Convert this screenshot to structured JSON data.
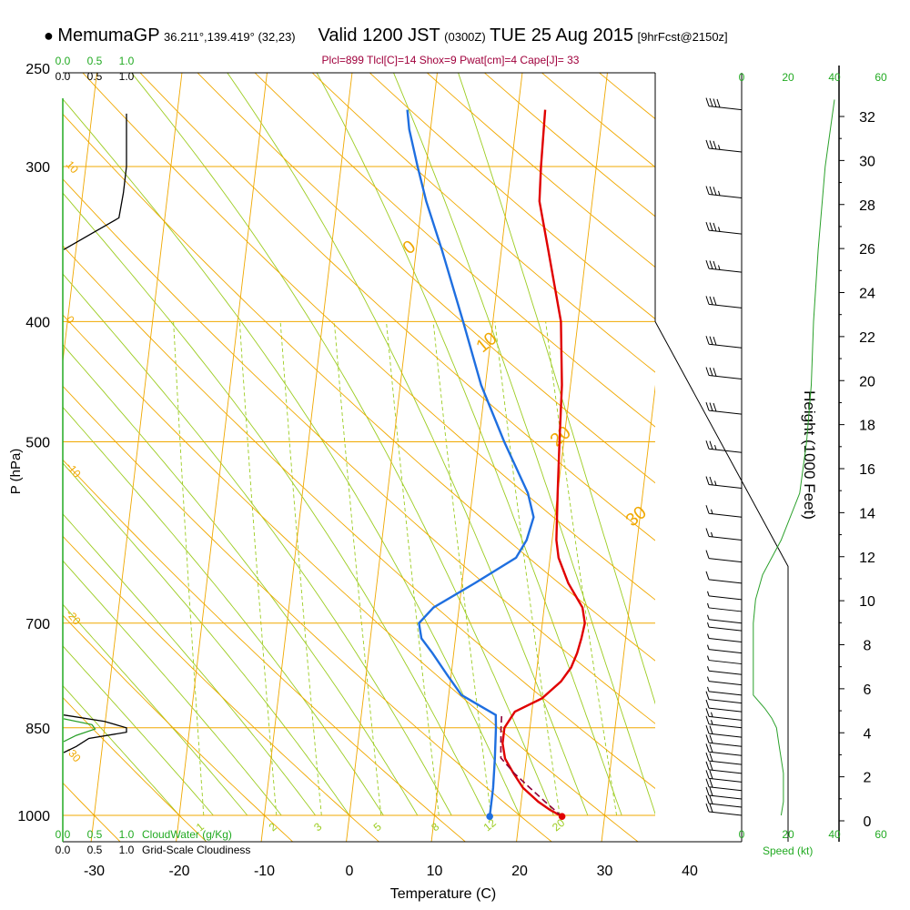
{
  "header": {
    "model": "MemumaGP",
    "coords": "36.211°,139.419° (32,23)",
    "valid_label": "Valid 1200 JST",
    "utc": "(0300Z)",
    "date": "TUE 25 Aug 2015",
    "forecast": "[9hrFcst@2150z]",
    "stats": "Plcl=899 Tlcl[C]=14 Shox=9 Pwat[cm]=4 Cape[J]= 33"
  },
  "colors": {
    "temperature": "#e00000",
    "dewpoint": "#1f6fe0",
    "parcel": "#8b0038",
    "isotherm": "#f0a800",
    "dry_adiabat": "#f0a800",
    "moist_adiabat": "#9ccc20",
    "mixing_ratio": "#9ccc20",
    "cloud": "#000000",
    "wind_speed": "#2aa02a",
    "scale_green": "#22aa22"
  },
  "chart_data": {
    "type": "line",
    "xlabel": "Temperature (C)",
    "ylabel": "P (hPa)",
    "y2label": "Height (1000 Feet)",
    "xticks": [
      "-30",
      "-20",
      "-10",
      "0",
      "10",
      "20",
      "30",
      "40"
    ],
    "xtick_values": [
      -30,
      -20,
      -10,
      0,
      10,
      20,
      30,
      40
    ],
    "yticks": [
      "1000",
      "850",
      "700",
      "500",
      "400",
      "300",
      "250"
    ],
    "ytick_values": [
      1000,
      850,
      700,
      500,
      400,
      300,
      250
    ],
    "height_ticks": [
      "0",
      "2",
      "4",
      "6",
      "8",
      "10",
      "12",
      "14",
      "16",
      "18",
      "20",
      "22",
      "24",
      "26",
      "28",
      "30",
      "32"
    ],
    "height_values_kft": [
      0,
      2,
      4,
      6,
      8,
      10,
      12,
      14,
      16,
      18,
      20,
      22,
      24,
      26,
      28,
      30,
      32
    ],
    "xlim": [
      -33.5,
      46
    ],
    "ylim": [
      1000,
      250
    ],
    "scale_labels": [
      "0.0",
      "0.5",
      "1.0"
    ],
    "bottom_green_scale_label": "CloudWater (g/Kg)",
    "bottom_black_scale_label": "Grid-Scale Cloudiness",
    "speed_ticks": [
      "0",
      "20",
      "40",
      "60"
    ],
    "speed_values": [
      0,
      20,
      40,
      60
    ],
    "speed_label": "Speed (kt)",
    "isotherm_labels": [
      {
        "text": "0",
        "t": 0,
        "p": 350
      },
      {
        "text": "10",
        "t": 10,
        "p": 420
      },
      {
        "text": "20",
        "t": 20,
        "p": 500
      },
      {
        "text": "30",
        "t": 30,
        "p": 580
      }
    ],
    "dry_adiabat_labels": [
      {
        "text": "10",
        "p": 300
      },
      {
        "text": "0",
        "p": 400
      },
      {
        "text": "-10",
        "p": 525
      },
      {
        "text": "-20",
        "p": 690
      },
      {
        "text": "-30",
        "p": 890
      }
    ],
    "mixing_ratio_labels": [
      {
        "text": "1",
        "w": 1
      },
      {
        "text": "2",
        "w": 2
      },
      {
        "text": "3",
        "w": 3
      },
      {
        "text": "5",
        "w": 5
      },
      {
        "text": "8",
        "w": 8
      },
      {
        "text": "12",
        "w": 12
      },
      {
        "text": "20",
        "w": 20
      }
    ],
    "temperature_profile": [
      {
        "p": 1002,
        "t": 25.0
      },
      {
        "p": 990,
        "t": 23.5
      },
      {
        "p": 975,
        "t": 22.0
      },
      {
        "p": 950,
        "t": 20.0
      },
      {
        "p": 925,
        "t": 18.7
      },
      {
        "p": 900,
        "t": 17.5
      },
      {
        "p": 875,
        "t": 17.0
      },
      {
        "p": 850,
        "t": 17.0
      },
      {
        "p": 825,
        "t": 18.0
      },
      {
        "p": 805,
        "t": 21.0
      },
      {
        "p": 780,
        "t": 23.0
      },
      {
        "p": 760,
        "t": 24.0
      },
      {
        "p": 740,
        "t": 24.5
      },
      {
        "p": 720,
        "t": 24.8
      },
      {
        "p": 700,
        "t": 25.0
      },
      {
        "p": 680,
        "t": 24.5
      },
      {
        "p": 650,
        "t": 22.5
      },
      {
        "p": 620,
        "t": 21.0
      },
      {
        "p": 600,
        "t": 20.5
      },
      {
        "p": 550,
        "t": 20.0
      },
      {
        "p": 500,
        "t": 19.5
      },
      {
        "p": 450,
        "t": 19.0
      },
      {
        "p": 400,
        "t": 18.0
      },
      {
        "p": 350,
        "t": 15.5
      },
      {
        "p": 320,
        "t": 13.8
      },
      {
        "p": 300,
        "t": 13.5
      },
      {
        "p": 270,
        "t": 13.2
      }
    ],
    "dewpoint_profile": [
      {
        "p": 1002,
        "t": 16.5
      },
      {
        "p": 990,
        "t": 16.5
      },
      {
        "p": 950,
        "t": 16.5
      },
      {
        "p": 900,
        "t": 16.3
      },
      {
        "p": 850,
        "t": 16.0
      },
      {
        "p": 830,
        "t": 15.8
      },
      {
        "p": 800,
        "t": 11.5
      },
      {
        "p": 770,
        "t": 9.5
      },
      {
        "p": 740,
        "t": 7.5
      },
      {
        "p": 720,
        "t": 6.0
      },
      {
        "p": 700,
        "t": 5.5
      },
      {
        "p": 680,
        "t": 7.0
      },
      {
        "p": 650,
        "t": 11.5
      },
      {
        "p": 620,
        "t": 16.0
      },
      {
        "p": 600,
        "t": 17.0
      },
      {
        "p": 575,
        "t": 17.5
      },
      {
        "p": 550,
        "t": 16.5
      },
      {
        "p": 500,
        "t": 13.0
      },
      {
        "p": 450,
        "t": 9.5
      },
      {
        "p": 400,
        "t": 6.5
      },
      {
        "p": 350,
        "t": 3.0
      },
      {
        "p": 320,
        "t": 0.5
      },
      {
        "p": 300,
        "t": -1.0
      },
      {
        "p": 280,
        "t": -2.5
      },
      {
        "p": 270,
        "t": -3.0
      }
    ],
    "parcel_profile": [
      {
        "p": 1002,
        "t": 25.0
      },
      {
        "p": 975,
        "t": 22.8
      },
      {
        "p": 950,
        "t": 20.8
      },
      {
        "p": 925,
        "t": 18.8
      },
      {
        "p": 899,
        "t": 17.0
      },
      {
        "p": 875,
        "t": 16.8
      },
      {
        "p": 850,
        "t": 16.6
      },
      {
        "p": 830,
        "t": 16.5
      }
    ],
    "surface_points": [
      {
        "series": "temperature",
        "p": 1002,
        "t": 25.0
      },
      {
        "series": "dewpoint",
        "p": 1002,
        "t": 16.5
      }
    ],
    "cloudiness_profile": [
      {
        "p": 272,
        "f": 1.0
      },
      {
        "p": 300,
        "f": 1.0
      },
      {
        "p": 315,
        "f": 0.95
      },
      {
        "p": 330,
        "f": 0.88
      },
      {
        "p": 350,
        "f": 0.0
      },
      {
        "p": 830,
        "f": 0.0
      },
      {
        "p": 840,
        "f": 0.65
      },
      {
        "p": 850,
        "f": 1.0
      },
      {
        "p": 857,
        "f": 1.0
      },
      {
        "p": 867,
        "f": 0.4
      },
      {
        "p": 880,
        "f": 0.2
      },
      {
        "p": 890,
        "f": 0.0
      }
    ],
    "cloudwater_profile": [
      {
        "p": 836,
        "f": 0.0
      },
      {
        "p": 845,
        "f": 0.45
      },
      {
        "p": 852,
        "f": 0.5
      },
      {
        "p": 862,
        "f": 0.2
      },
      {
        "p": 872,
        "f": 0.0
      }
    ],
    "wind_speed_profile": [
      {
        "p": 1000,
        "v": 17
      },
      {
        "p": 975,
        "v": 18
      },
      {
        "p": 950,
        "v": 18
      },
      {
        "p": 925,
        "v": 18
      },
      {
        "p": 900,
        "v": 17
      },
      {
        "p": 875,
        "v": 16
      },
      {
        "p": 850,
        "v": 15
      },
      {
        "p": 835,
        "v": 13
      },
      {
        "p": 820,
        "v": 10
      },
      {
        "p": 800,
        "v": 5
      },
      {
        "p": 770,
        "v": 5
      },
      {
        "p": 740,
        "v": 5
      },
      {
        "p": 700,
        "v": 5
      },
      {
        "p": 670,
        "v": 6
      },
      {
        "p": 640,
        "v": 9
      },
      {
        "p": 600,
        "v": 17
      },
      {
        "p": 550,
        "v": 25
      },
      {
        "p": 500,
        "v": 28
      },
      {
        "p": 450,
        "v": 30
      },
      {
        "p": 400,
        "v": 31
      },
      {
        "p": 350,
        "v": 33
      },
      {
        "p": 300,
        "v": 36
      },
      {
        "p": 265,
        "v": 40
      }
    ],
    "wind_barbs": [
      {
        "p": 1000,
        "speed": 20
      },
      {
        "p": 985,
        "speed": 20
      },
      {
        "p": 970,
        "speed": 20
      },
      {
        "p": 955,
        "speed": 20
      },
      {
        "p": 940,
        "speed": 20
      },
      {
        "p": 925,
        "speed": 20
      },
      {
        "p": 910,
        "speed": 20
      },
      {
        "p": 895,
        "speed": 20
      },
      {
        "p": 880,
        "speed": 20
      },
      {
        "p": 865,
        "speed": 20
      },
      {
        "p": 850,
        "speed": 15
      },
      {
        "p": 838,
        "speed": 15
      },
      {
        "p": 825,
        "speed": 10
      },
      {
        "p": 812,
        "speed": 10
      },
      {
        "p": 800,
        "speed": 5
      },
      {
        "p": 785,
        "speed": 5
      },
      {
        "p": 770,
        "speed": 5
      },
      {
        "p": 755,
        "speed": 5
      },
      {
        "p": 740,
        "speed": 5
      },
      {
        "p": 725,
        "speed": 5
      },
      {
        "p": 710,
        "speed": 5
      },
      {
        "p": 700,
        "speed": 5
      },
      {
        "p": 685,
        "speed": 5
      },
      {
        "p": 670,
        "speed": 5
      },
      {
        "p": 650,
        "speed": 10
      },
      {
        "p": 625,
        "speed": 10
      },
      {
        "p": 600,
        "speed": 15
      },
      {
        "p": 575,
        "speed": 15
      },
      {
        "p": 545,
        "speed": 25
      },
      {
        "p": 510,
        "speed": 25
      },
      {
        "p": 475,
        "speed": 30
      },
      {
        "p": 445,
        "speed": 30
      },
      {
        "p": 420,
        "speed": 30
      },
      {
        "p": 390,
        "speed": 30
      },
      {
        "p": 365,
        "speed": 35
      },
      {
        "p": 340,
        "speed": 35
      },
      {
        "p": 318,
        "speed": 35
      },
      {
        "p": 292,
        "speed": 35
      },
      {
        "p": 270,
        "speed": 40
      }
    ]
  }
}
